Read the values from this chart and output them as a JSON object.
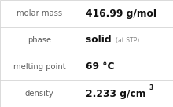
{
  "rows": [
    {
      "label": "molar mass",
      "value": "416.99 g/mol",
      "superscript": null,
      "sub_text": null
    },
    {
      "label": "phase",
      "value": "solid",
      "superscript": null,
      "sub_text": "(at STP)"
    },
    {
      "label": "melting point",
      "value": "69 °C",
      "superscript": null,
      "sub_text": null
    },
    {
      "label": "density",
      "value": "2.233 g/cm",
      "superscript": "3",
      "sub_text": null
    }
  ],
  "col_split": 0.455,
  "bg_color": "#ffffff",
  "border_color": "#cccccc",
  "label_color": "#606060",
  "value_color": "#111111",
  "sub_text_color": "#888888",
  "label_fontsize": 7.2,
  "value_fontsize": 8.8,
  "sub_text_fontsize": 5.5,
  "superscript_fontsize": 5.5,
  "figwidth": 2.2,
  "figheight": 1.36,
  "dpi": 100
}
